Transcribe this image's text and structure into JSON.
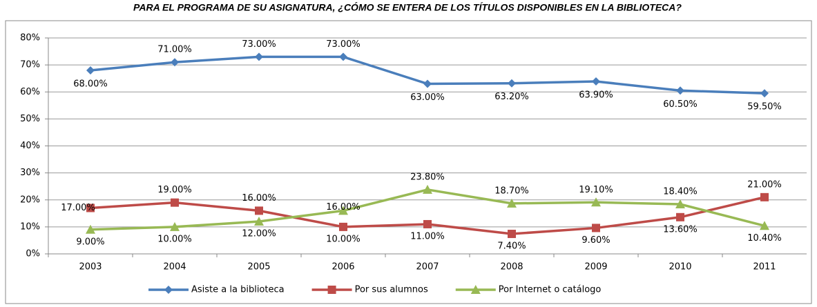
{
  "chart_data": {
    "type": "line",
    "title": "PARA EL PROGRAMA DE SU ASIGNATURA, ¿CÓMO SE ENTERA DE LOS TÍTULOS DISPONIBLES EN LA BIBLIOTECA?",
    "categories": [
      "2003",
      "2004",
      "2005",
      "2006",
      "2007",
      "2008",
      "2009",
      "2010",
      "2011"
    ],
    "series": [
      {
        "name": "Asiste a la biblioteca",
        "color": "#4a7ebb",
        "marker": "diamond",
        "values": [
          68,
          71,
          73,
          73,
          63,
          63.2,
          63.9,
          60.5,
          59.5
        ],
        "value_labels": [
          "68.00%",
          "71.00%",
          "73.00%",
          "73.00%",
          "63.00%",
          "63.20%",
          "63.90%",
          "60.50%",
          "59.50%"
        ]
      },
      {
        "name": "Por sus alumnos",
        "color": "#be4b48",
        "marker": "square",
        "values": [
          17,
          19,
          16,
          10,
          11,
          7.4,
          9.6,
          13.6,
          21
        ],
        "value_labels": [
          "17.00%",
          "19.00%",
          "16.00%",
          "10.00%",
          "11.00%",
          "7.40%",
          "9.60%",
          "13.60%",
          "21.00%"
        ]
      },
      {
        "name": "Por Internet o catálogo",
        "color": "#98b954",
        "marker": "triangle",
        "values": [
          9,
          10,
          12,
          16,
          23.8,
          18.7,
          19.1,
          18.4,
          10.4
        ],
        "value_labels": [
          "9.00%",
          "10.00%",
          "12.00%",
          "16.00%",
          "23.80%",
          "18.70%",
          "19.10%",
          "18.40%",
          "10.40%"
        ]
      }
    ],
    "ylim": [
      0,
      80
    ],
    "yticks": [
      {
        "value": 0,
        "label": "0%"
      },
      {
        "value": 10,
        "label": "10%"
      },
      {
        "value": 20,
        "label": "20%"
      },
      {
        "value": 30,
        "label": "30%"
      },
      {
        "value": 40,
        "label": "40%"
      },
      {
        "value": 50,
        "label": "50%"
      },
      {
        "value": 60,
        "label": "60%"
      },
      {
        "value": 70,
        "label": "70%"
      },
      {
        "value": 80,
        "label": "80%"
      }
    ],
    "grid": true,
    "legend": "bottom"
  }
}
